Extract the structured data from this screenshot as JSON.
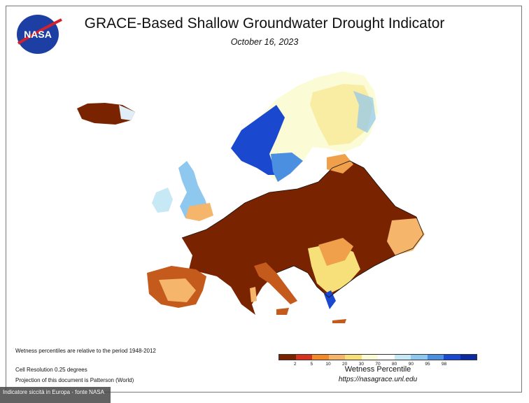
{
  "title": "GRACE-Based Shallow Groundwater Drought Indicator",
  "date": "October 16, 2023",
  "logo_text": "NASA",
  "notes": {
    "period": "Wetness percentiles are relative to the period 1948-2012",
    "resolution": "Cell Resolution 0.25 degrees",
    "projection": "Projection of this document is Patterson (World)"
  },
  "legend": {
    "title": "Wetness Percentile",
    "ticks": [
      "2",
      "5",
      "10",
      "20",
      "30",
      "70",
      "80",
      "90",
      "95",
      "98"
    ],
    "colors": [
      "#7a2300",
      "#d6331e",
      "#f08a2a",
      "#f5b56b",
      "#f7e07a",
      "#fbfbd6",
      "#ffffff",
      "#c7e8f5",
      "#8fc8ee",
      "#4a8fe0",
      "#1a48cf",
      "#0b2aa0"
    ]
  },
  "url": "https://nasagrace.unl.edu",
  "caption": "Indicatore siccità in Europa - fonte NASA",
  "map_colors": {
    "severe_dry": "#7a2300",
    "dry": "#c45a1c",
    "moderate": "#f0a04a",
    "light": "#f7e07a",
    "normal": "#fbfbd6",
    "wet": "#8fc8ee",
    "very_wet": "#1a48cf",
    "sea": "#ffffff"
  }
}
